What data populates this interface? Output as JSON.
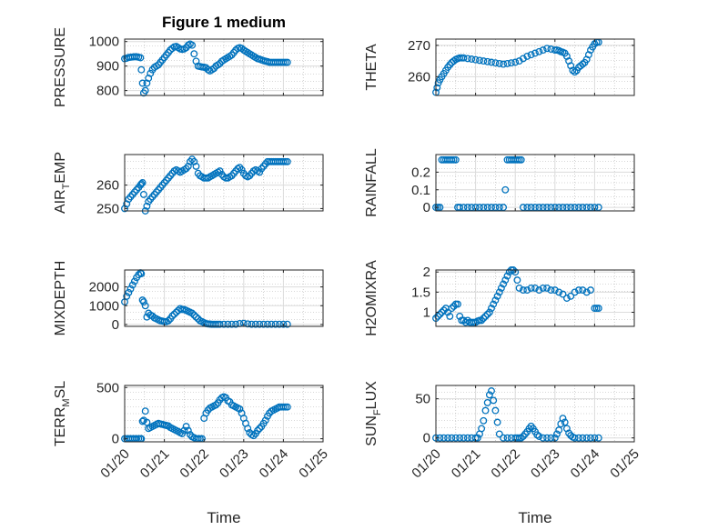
{
  "figure": {
    "title": "Figure 1 medium",
    "xlabel": "Time",
    "marker_color": "#0072bd",
    "grid": true
  },
  "chart_data": [
    {
      "type": "scatter",
      "row": 0,
      "col": 0,
      "ylabel": "PRESSURE",
      "ylim": [
        780,
        1010
      ],
      "yticks": [
        800,
        900,
        1000
      ],
      "xlim": [
        0,
        5
      ],
      "xticks": [
        0,
        1,
        2,
        3,
        4,
        5
      ],
      "xticklabels": [
        "01/20",
        "01/21",
        "01/22",
        "01/23",
        "01/24",
        "01/25"
      ],
      "x": [
        0.0,
        0.05,
        0.1,
        0.15,
        0.2,
        0.25,
        0.3,
        0.35,
        0.4,
        0.42,
        0.45,
        0.48,
        0.52,
        0.56,
        0.6,
        0.65,
        0.7,
        0.75,
        0.8,
        0.85,
        0.9,
        0.95,
        1.0,
        1.05,
        1.1,
        1.15,
        1.2,
        1.25,
        1.3,
        1.35,
        1.4,
        1.45,
        1.5,
        1.55,
        1.6,
        1.65,
        1.7,
        1.75,
        1.8,
        1.85,
        1.9,
        1.95,
        2.0,
        2.05,
        2.1,
        2.15,
        2.2,
        2.25,
        2.3,
        2.35,
        2.4,
        2.45,
        2.5,
        2.55,
        2.6,
        2.65,
        2.7,
        2.75,
        2.8,
        2.85,
        2.9,
        2.95,
        3.0,
        3.05,
        3.1,
        3.15,
        3.2,
        3.25,
        3.3,
        3.35,
        3.4,
        3.45,
        3.5,
        3.55,
        3.6,
        3.65,
        3.7,
        3.75,
        3.8,
        3.85,
        3.9,
        3.95,
        4.0,
        4.05,
        4.1
      ],
      "y": [
        930,
        932,
        935,
        936,
        937,
        938,
        938,
        936,
        934,
        885,
        830,
        790,
        800,
        830,
        850,
        870,
        885,
        895,
        900,
        905,
        915,
        925,
        935,
        945,
        955,
        965,
        972,
        978,
        980,
        975,
        970,
        968,
        970,
        975,
        985,
        990,
        985,
        950,
        920,
        900,
        898,
        896,
        895,
        893,
        885,
        880,
        885,
        890,
        900,
        905,
        910,
        920,
        925,
        930,
        935,
        940,
        945,
        955,
        965,
        972,
        975,
        972,
        965,
        960,
        955,
        950,
        945,
        940,
        935,
        930,
        928,
        925,
        922,
        920,
        918,
        915,
        915,
        915,
        915,
        915,
        915,
        915,
        915,
        915,
        915
      ]
    },
    {
      "type": "scatter",
      "row": 0,
      "col": 1,
      "ylabel": "THETA",
      "ylim": [
        254,
        272
      ],
      "yticks": [
        260,
        270
      ],
      "xlim": [
        0,
        5
      ],
      "xticks": [
        0,
        1,
        2,
        3,
        4,
        5
      ],
      "xticklabels": [
        "01/20",
        "01/21",
        "01/22",
        "01/23",
        "01/24",
        "01/25"
      ],
      "x": [
        0.0,
        0.03,
        0.06,
        0.1,
        0.15,
        0.2,
        0.25,
        0.3,
        0.35,
        0.4,
        0.45,
        0.5,
        0.55,
        0.6,
        0.65,
        0.7,
        0.8,
        0.9,
        1.0,
        1.1,
        1.2,
        1.3,
        1.4,
        1.5,
        1.6,
        1.7,
        1.8,
        1.9,
        2.0,
        2.1,
        2.2,
        2.3,
        2.4,
        2.5,
        2.6,
        2.7,
        2.8,
        2.9,
        3.0,
        3.05,
        3.1,
        3.15,
        3.2,
        3.25,
        3.3,
        3.35,
        3.4,
        3.45,
        3.5,
        3.55,
        3.6,
        3.65,
        3.7,
        3.75,
        3.8,
        3.85,
        3.9,
        3.95,
        4.0,
        4.05,
        4.1
      ],
      "y": [
        255.0,
        256.5,
        258.0,
        259.0,
        260.0,
        261.0,
        262.0,
        263.0,
        263.8,
        264.5,
        265.0,
        265.5,
        265.8,
        266.0,
        266.0,
        266.0,
        265.8,
        265.6,
        265.4,
        265.2,
        265.0,
        264.8,
        264.6,
        264.4,
        264.2,
        264.0,
        264.2,
        264.4,
        264.6,
        265.0,
        265.8,
        266.5,
        267.0,
        267.5,
        268.0,
        268.5,
        269.0,
        268.8,
        268.5,
        268.5,
        268.3,
        268.0,
        267.8,
        267.5,
        266.5,
        265.0,
        263.5,
        262.0,
        261.5,
        262.0,
        263.0,
        263.5,
        264.0,
        264.5,
        265.5,
        267.0,
        268.5,
        269.5,
        270.5,
        271.0,
        271.0
      ]
    },
    {
      "type": "scatter",
      "row": 1,
      "col": 0,
      "ylabel": "AIR_TEMP",
      "ylim": [
        249,
        273
      ],
      "yticks": [
        250,
        260
      ],
      "xlim": [
        0,
        5
      ],
      "xticks": [
        0,
        1,
        2,
        3,
        4,
        5
      ],
      "xticklabels": [
        "01/20",
        "01/21",
        "01/22",
        "01/23",
        "01/24",
        "01/25"
      ],
      "x": [
        0.0,
        0.05,
        0.1,
        0.15,
        0.2,
        0.25,
        0.3,
        0.35,
        0.4,
        0.42,
        0.45,
        0.48,
        0.52,
        0.56,
        0.6,
        0.65,
        0.7,
        0.75,
        0.8,
        0.85,
        0.9,
        0.95,
        1.0,
        1.05,
        1.1,
        1.15,
        1.2,
        1.25,
        1.3,
        1.35,
        1.4,
        1.45,
        1.5,
        1.55,
        1.6,
        1.65,
        1.7,
        1.75,
        1.8,
        1.85,
        1.9,
        1.95,
        2.0,
        2.05,
        2.1,
        2.15,
        2.2,
        2.25,
        2.3,
        2.35,
        2.4,
        2.45,
        2.5,
        2.55,
        2.6,
        2.65,
        2.7,
        2.75,
        2.8,
        2.85,
        2.9,
        2.95,
        3.0,
        3.05,
        3.1,
        3.15,
        3.2,
        3.25,
        3.3,
        3.35,
        3.4,
        3.45,
        3.5,
        3.55,
        3.6,
        3.65,
        3.7,
        3.75,
        3.8,
        3.85,
        3.9,
        3.95,
        4.0,
        4.05,
        4.1
      ],
      "y": [
        250,
        252,
        254,
        255,
        256,
        257,
        258,
        259,
        260,
        260.5,
        261,
        256,
        249,
        251,
        253,
        254,
        255,
        256,
        257,
        258,
        259,
        260,
        261,
        262,
        263,
        264,
        265,
        266,
        266.5,
        266,
        265.5,
        266,
        266.5,
        267,
        268,
        270,
        271,
        270,
        268,
        265,
        264,
        263.5,
        263,
        263,
        263,
        263.5,
        264,
        264.5,
        265,
        265.5,
        266,
        264.5,
        263.5,
        263,
        263,
        263.5,
        264,
        265,
        266,
        267,
        267.5,
        266.5,
        265,
        264,
        263.5,
        264,
        265,
        266,
        266.5,
        266,
        265.5,
        267,
        268,
        269,
        270,
        270,
        270,
        270,
        270,
        270,
        270,
        270,
        270,
        270,
        270
      ]
    },
    {
      "type": "scatter",
      "row": 1,
      "col": 1,
      "ylabel": "RAINFALL",
      "ylim": [
        -0.02,
        0.3
      ],
      "yticks": [
        0,
        0.1,
        0.2
      ],
      "xlim": [
        0,
        5
      ],
      "xticks": [
        0,
        1,
        2,
        3,
        4,
        5
      ],
      "xticklabels": [
        "01/20",
        "01/21",
        "01/22",
        "01/23",
        "01/24",
        "01/25"
      ],
      "x": [
        0.0,
        0.05,
        0.1,
        0.15,
        0.2,
        0.25,
        0.3,
        0.35,
        0.4,
        0.45,
        0.5,
        0.55,
        0.6,
        0.7,
        0.8,
        0.9,
        1.0,
        1.1,
        1.2,
        1.3,
        1.4,
        1.5,
        1.6,
        1.7,
        1.75,
        1.8,
        1.85,
        1.9,
        1.95,
        2.0,
        2.05,
        2.1,
        2.15,
        2.2,
        2.3,
        2.4,
        2.5,
        2.6,
        2.7,
        2.8,
        2.9,
        3.0,
        3.1,
        3.2,
        3.3,
        3.4,
        3.5,
        3.6,
        3.7,
        3.8,
        3.9,
        4.0,
        4.1
      ],
      "y": [
        0,
        0,
        0,
        0.27,
        0.27,
        0.27,
        0.27,
        0.27,
        0.27,
        0.27,
        0.27,
        0,
        0,
        0,
        0,
        0,
        0,
        0,
        0,
        0,
        0,
        0,
        0,
        0,
        0.1,
        0.27,
        0.27,
        0.27,
        0.27,
        0.27,
        0.27,
        0.27,
        0.27,
        0,
        0,
        0,
        0,
        0,
        0,
        0,
        0,
        0,
        0,
        0,
        0,
        0,
        0,
        0,
        0,
        0,
        0,
        0,
        0
      ]
    },
    {
      "type": "scatter",
      "row": 2,
      "col": 0,
      "ylabel": "MIXDEPTH",
      "ylim": [
        -100,
        2900
      ],
      "yticks": [
        0,
        1000,
        2000
      ],
      "xlim": [
        0,
        5
      ],
      "xticks": [
        0,
        1,
        2,
        3,
        4,
        5
      ],
      "xticklabels": [
        "01/20",
        "01/21",
        "01/22",
        "01/23",
        "01/24",
        "01/25"
      ],
      "x": [
        0.0,
        0.05,
        0.1,
        0.15,
        0.2,
        0.25,
        0.3,
        0.35,
        0.4,
        0.42,
        0.45,
        0.48,
        0.52,
        0.56,
        0.6,
        0.65,
        0.7,
        0.75,
        0.8,
        0.85,
        0.9,
        0.95,
        1.0,
        1.05,
        1.1,
        1.15,
        1.2,
        1.25,
        1.3,
        1.35,
        1.4,
        1.45,
        1.5,
        1.55,
        1.6,
        1.65,
        1.7,
        1.75,
        1.8,
        1.85,
        1.9,
        1.95,
        2.0,
        2.05,
        2.1,
        2.15,
        2.2,
        2.25,
        2.3,
        2.35,
        2.4,
        2.5,
        2.6,
        2.7,
        2.8,
        2.9,
        3.0,
        3.1,
        3.2,
        3.3,
        3.4,
        3.5,
        3.6,
        3.7,
        3.8,
        3.9,
        4.0,
        4.1
      ],
      "y": [
        1200,
        1500,
        1700,
        1900,
        2100,
        2300,
        2500,
        2650,
        2750,
        2700,
        1300,
        1200,
        1000,
        400,
        600,
        500,
        450,
        350,
        300,
        250,
        200,
        180,
        150,
        150,
        200,
        300,
        450,
        550,
        650,
        750,
        850,
        800,
        800,
        750,
        700,
        650,
        600,
        500,
        400,
        300,
        200,
        150,
        100,
        50,
        30,
        20,
        10,
        10,
        10,
        10,
        10,
        10,
        10,
        10,
        10,
        50,
        60,
        30,
        10,
        10,
        10,
        10,
        10,
        10,
        10,
        10,
        10,
        10
      ]
    },
    {
      "type": "scatter",
      "row": 2,
      "col": 1,
      "ylabel": "H2OMIXRA",
      "ylim": [
        0.65,
        2.05
      ],
      "yticks": [
        1,
        1.5,
        2
      ],
      "xlim": [
        0,
        5
      ],
      "xticks": [
        0,
        1,
        2,
        3,
        4,
        5
      ],
      "xticklabels": [
        "01/20",
        "01/21",
        "01/22",
        "01/23",
        "01/24",
        "01/25"
      ],
      "x": [
        0.0,
        0.05,
        0.1,
        0.15,
        0.2,
        0.25,
        0.3,
        0.35,
        0.4,
        0.45,
        0.5,
        0.55,
        0.6,
        0.65,
        0.7,
        0.75,
        0.8,
        0.85,
        0.9,
        0.95,
        1.0,
        1.05,
        1.1,
        1.15,
        1.2,
        1.25,
        1.3,
        1.35,
        1.4,
        1.45,
        1.5,
        1.55,
        1.6,
        1.65,
        1.7,
        1.75,
        1.8,
        1.85,
        1.9,
        1.95,
        2.0,
        2.05,
        2.1,
        2.2,
        2.3,
        2.4,
        2.5,
        2.6,
        2.7,
        2.8,
        2.9,
        3.0,
        3.1,
        3.2,
        3.3,
        3.4,
        3.5,
        3.6,
        3.7,
        3.8,
        3.9,
        4.0,
        4.05,
        4.1
      ],
      "y": [
        0.85,
        0.9,
        0.95,
        1.0,
        1.05,
        1.1,
        1.0,
        0.9,
        1.1,
        1.15,
        1.2,
        1.2,
        0.9,
        0.8,
        0.8,
        0.75,
        0.8,
        0.75,
        0.75,
        0.75,
        0.75,
        0.78,
        0.8,
        0.8,
        0.85,
        0.9,
        0.95,
        1.0,
        1.1,
        1.2,
        1.3,
        1.4,
        1.5,
        1.6,
        1.7,
        1.8,
        1.9,
        2.0,
        2.05,
        2.05,
        2.0,
        1.8,
        1.6,
        1.55,
        1.55,
        1.6,
        1.6,
        1.55,
        1.6,
        1.6,
        1.55,
        1.55,
        1.5,
        1.45,
        1.35,
        1.4,
        1.5,
        1.55,
        1.55,
        1.5,
        1.55,
        1.1,
        1.1,
        1.1
      ]
    },
    {
      "type": "scatter",
      "row": 3,
      "col": 0,
      "ylabel": "TERR_MSL",
      "ylim": [
        -30,
        520
      ],
      "yticks": [
        0,
        500
      ],
      "xlim": [
        0,
        5
      ],
      "xticks": [
        0,
        1,
        2,
        3,
        4,
        5
      ],
      "xticklabels": [
        "01/20",
        "01/21",
        "01/22",
        "01/23",
        "01/24",
        "01/25"
      ],
      "x": [
        0.0,
        0.05,
        0.1,
        0.15,
        0.2,
        0.25,
        0.3,
        0.35,
        0.4,
        0.42,
        0.45,
        0.48,
        0.52,
        0.56,
        0.6,
        0.65,
        0.7,
        0.75,
        0.8,
        0.85,
        0.9,
        0.95,
        1.0,
        1.05,
        1.1,
        1.15,
        1.2,
        1.25,
        1.3,
        1.35,
        1.4,
        1.45,
        1.5,
        1.55,
        1.6,
        1.65,
        1.7,
        1.75,
        1.8,
        1.85,
        1.9,
        1.95,
        2.0,
        2.05,
        2.1,
        2.15,
        2.2,
        2.25,
        2.3,
        2.35,
        2.4,
        2.45,
        2.5,
        2.55,
        2.6,
        2.65,
        2.7,
        2.75,
        2.8,
        2.85,
        2.9,
        2.95,
        3.0,
        3.05,
        3.1,
        3.15,
        3.2,
        3.25,
        3.3,
        3.35,
        3.4,
        3.45,
        3.5,
        3.55,
        3.6,
        3.65,
        3.7,
        3.75,
        3.8,
        3.85,
        3.9,
        3.95,
        4.0,
        4.05,
        4.1
      ],
      "y": [
        0,
        0,
        0,
        0,
        0,
        0,
        0,
        0,
        0,
        0,
        170,
        180,
        270,
        160,
        100,
        110,
        120,
        130,
        140,
        150,
        145,
        140,
        135,
        130,
        125,
        110,
        100,
        90,
        80,
        70,
        60,
        50,
        80,
        120,
        80,
        40,
        20,
        10,
        0,
        0,
        0,
        0,
        200,
        250,
        280,
        300,
        310,
        320,
        330,
        350,
        380,
        400,
        410,
        400,
        370,
        360,
        330,
        320,
        310,
        300,
        290,
        250,
        200,
        150,
        100,
        60,
        40,
        30,
        50,
        80,
        100,
        120,
        150,
        180,
        220,
        250,
        270,
        280,
        290,
        300,
        310,
        310,
        310,
        310,
        310
      ]
    },
    {
      "type": "scatter",
      "row": 3,
      "col": 1,
      "ylabel": "SUN_FLUX",
      "ylim": [
        -5,
        67
      ],
      "yticks": [
        0,
        50
      ],
      "xlim": [
        0,
        5
      ],
      "xticks": [
        0,
        1,
        2,
        3,
        4,
        5
      ],
      "xticklabels": [
        "01/20",
        "01/21",
        "01/22",
        "01/23",
        "01/24",
        "01/25"
      ],
      "x": [
        0.0,
        0.1,
        0.2,
        0.3,
        0.4,
        0.5,
        0.6,
        0.7,
        0.8,
        0.9,
        1.0,
        1.05,
        1.1,
        1.15,
        1.2,
        1.25,
        1.3,
        1.35,
        1.4,
        1.45,
        1.5,
        1.55,
        1.6,
        1.7,
        1.8,
        1.9,
        2.0,
        2.05,
        2.1,
        2.15,
        2.2,
        2.25,
        2.3,
        2.35,
        2.4,
        2.45,
        2.5,
        2.55,
        2.6,
        2.7,
        2.8,
        2.9,
        3.0,
        3.05,
        3.1,
        3.15,
        3.2,
        3.25,
        3.3,
        3.35,
        3.4,
        3.45,
        3.5,
        3.6,
        3.7,
        3.8,
        3.9,
        4.0,
        4.1
      ],
      "y": [
        0,
        0,
        0,
        0,
        0,
        0,
        0,
        0,
        0,
        0,
        0,
        0,
        5,
        12,
        22,
        35,
        45,
        55,
        60,
        48,
        35,
        20,
        5,
        0,
        0,
        0,
        0,
        0,
        0,
        0,
        2,
        5,
        8,
        12,
        15,
        12,
        8,
        4,
        2,
        0,
        0,
        0,
        0,
        5,
        10,
        18,
        25,
        20,
        12,
        6,
        3,
        1,
        0,
        0,
        0,
        0,
        0,
        0,
        0
      ]
    }
  ]
}
